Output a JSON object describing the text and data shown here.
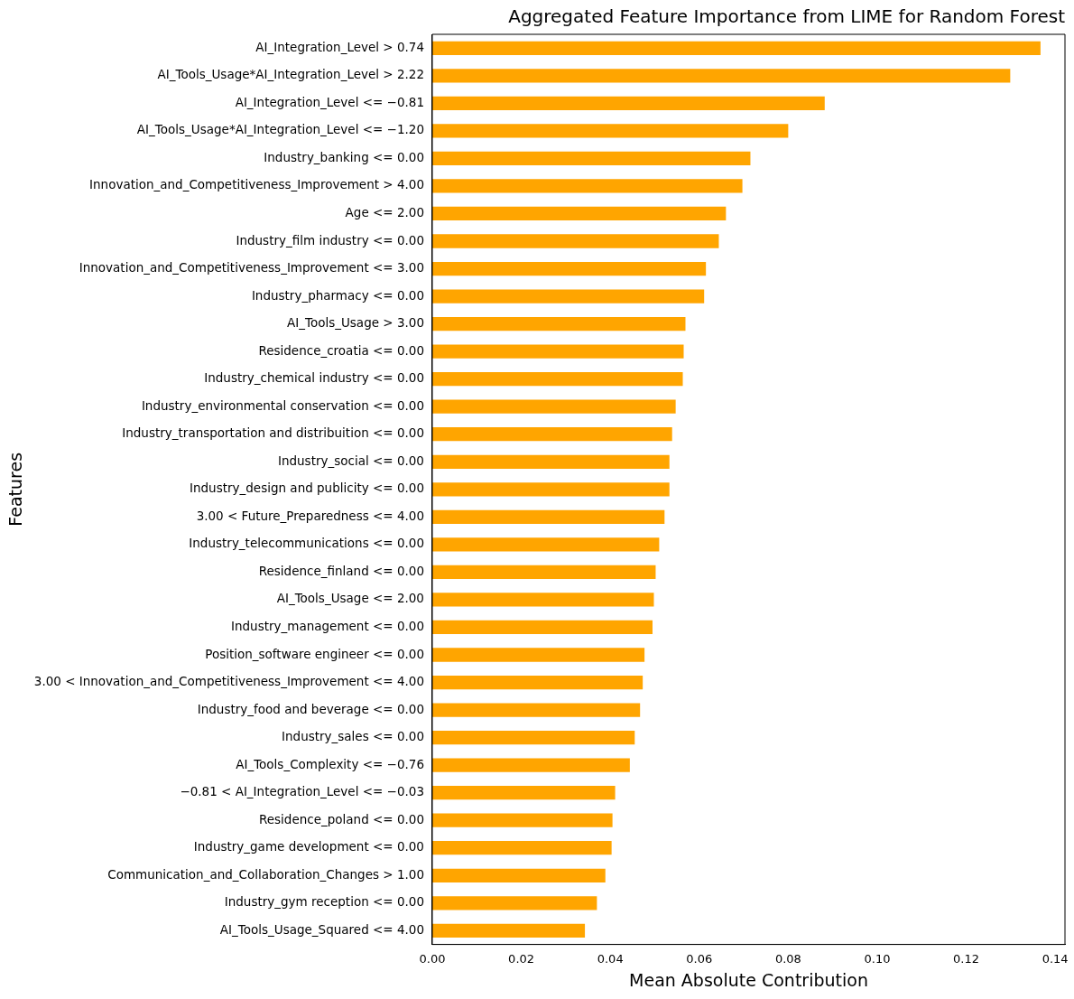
{
  "chart_data": {
    "type": "bar",
    "orientation": "horizontal",
    "title": "Aggregated Feature Importance from LIME for Random Forest",
    "xlabel": "Mean Absolute Contribution",
    "ylabel": "Features",
    "categories": [
      "AI_Integration_Level > 0.74",
      "AI_Tools_Usage*AI_Integration_Level > 2.22",
      "AI_Integration_Level <= −0.81",
      "AI_Tools_Usage*AI_Integration_Level <= −1.20",
      "Industry_banking <= 0.00",
      "Innovation_and_Competitiveness_Improvement > 4.00",
      "Age <= 2.00",
      "Industry_film industry <= 0.00",
      "Innovation_and_Competitiveness_Improvement <= 3.00",
      "Industry_pharmacy <= 0.00",
      "AI_Tools_Usage > 3.00",
      "Residence_croatia <= 0.00",
      "Industry_chemical industry <= 0.00",
      "Industry_environmental conservation <= 0.00",
      "Industry_transportation and distribuition <= 0.00",
      "Industry_social <= 0.00",
      "Industry_design and publicity <= 0.00",
      "3.00 < Future_Preparedness <= 4.00",
      "Industry_telecommunications <= 0.00",
      "Residence_finland <= 0.00",
      "AI_Tools_Usage <= 2.00",
      "Industry_management <= 0.00",
      "Position_software engineer <= 0.00",
      "3.00 < Innovation_and_Competitiveness_Improvement <= 4.00",
      "Industry_food and beverage <= 0.00",
      "Industry_sales <= 0.00",
      "AI_Tools_Complexity <= −0.76",
      "−0.81 < AI_Integration_Level <= −0.03",
      "Residence_poland <= 0.00",
      "Industry_game development <= 0.00",
      "Communication_and_Collaboration_Changes > 1.00",
      "Industry_gym reception <= 0.00",
      "AI_Tools_Usage_Squared <= 4.00"
    ],
    "values": [
      0.1367,
      0.1299,
      0.0882,
      0.08,
      0.0715,
      0.0697,
      0.066,
      0.0644,
      0.0615,
      0.0611,
      0.0569,
      0.0565,
      0.0563,
      0.0547,
      0.0539,
      0.0533,
      0.0533,
      0.0522,
      0.051,
      0.0502,
      0.0498,
      0.0495,
      0.0477,
      0.0473,
      0.0467,
      0.0455,
      0.0444,
      0.0411,
      0.0405,
      0.0403,
      0.0389,
      0.037,
      0.0343
    ],
    "color": "#ffa500",
    "xlim": [
      0,
      0.1422
    ],
    "xticks": [
      {
        "value": 0,
        "label": "0.00"
      },
      {
        "value": 0.02,
        "label": "0.02"
      },
      {
        "value": 0.04,
        "label": "0.04"
      },
      {
        "value": 0.06,
        "label": "0.06"
      },
      {
        "value": 0.08,
        "label": "0.08"
      },
      {
        "value": 0.1,
        "label": "0.10"
      },
      {
        "value": 0.12,
        "label": "0.12"
      },
      {
        "value": 0.14,
        "label": "0.14"
      }
    ],
    "grid": false
  }
}
